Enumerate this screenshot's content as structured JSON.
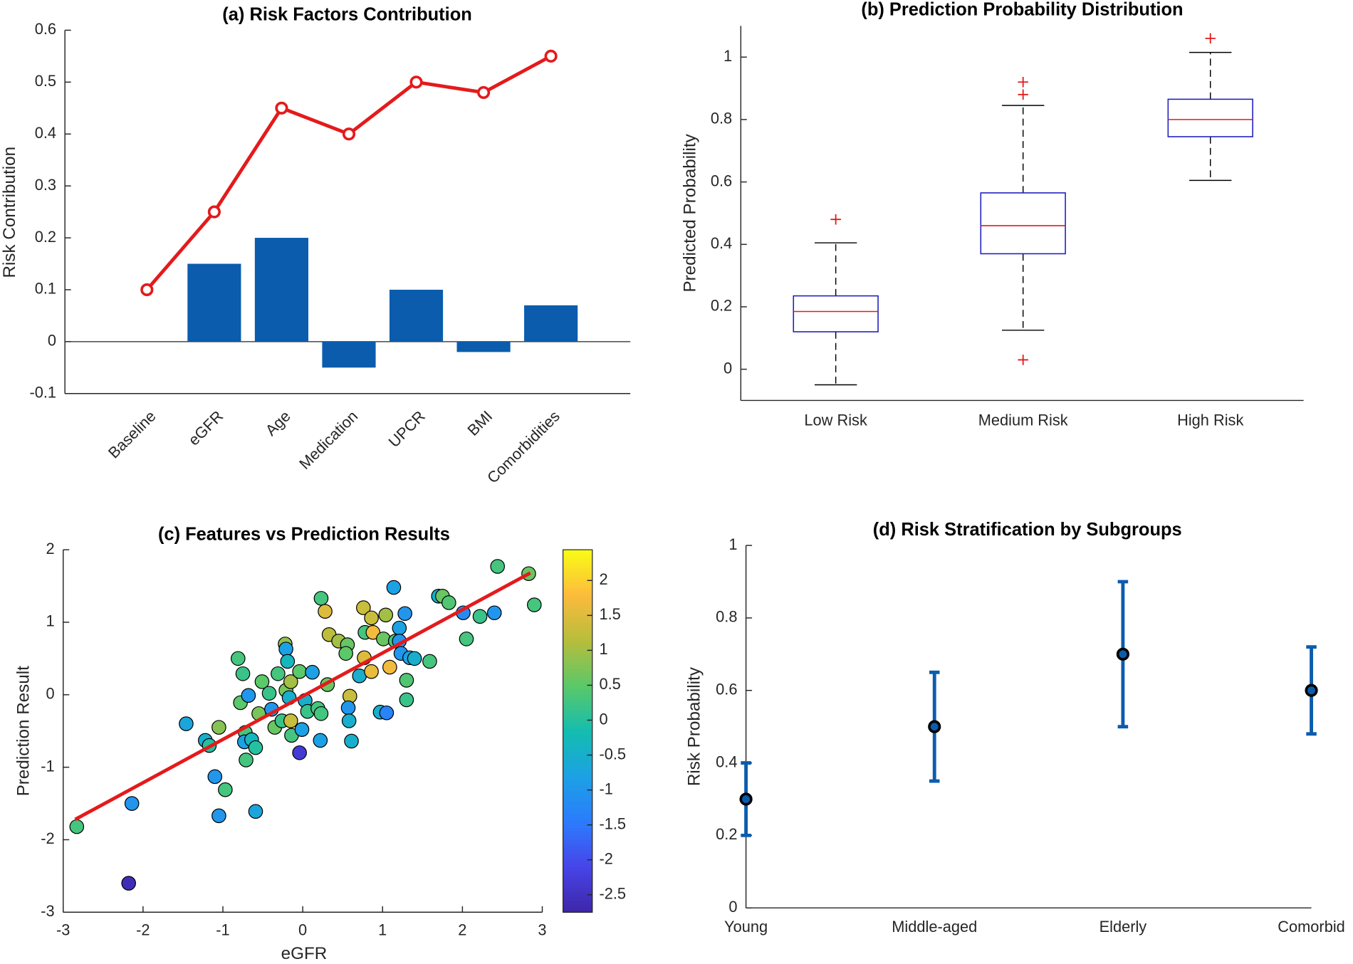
{
  "chart_data": [
    {
      "type": "combo",
      "title": "(a) Risk Factors Contribution",
      "ylabel": "Risk Contribution",
      "categories": [
        "Baseline",
        "eGFR",
        "Age",
        "Medication",
        "UPCR",
        "BMI",
        "Comorbidities"
      ],
      "series": [
        {
          "type": "bar",
          "color": "#0b5cad",
          "values": [
            0,
            0.15,
            0.2,
            -0.05,
            0.1,
            -0.02,
            0.07
          ]
        },
        {
          "type": "line",
          "color": "#e41a1c",
          "values": [
            0.1,
            0.25,
            0.45,
            0.4,
            0.5,
            0.48,
            0.55
          ]
        }
      ],
      "ylim": [
        -0.1,
        0.6
      ],
      "yticks": [
        -0.1,
        0,
        0.1,
        0.2,
        0.3,
        0.4,
        0.5,
        0.6
      ]
    },
    {
      "type": "box",
      "title": "(b) Prediction Probability Distribution",
      "ylabel": "Predicted Probability",
      "categories": [
        "Low Risk",
        "Medium Risk",
        "High Risk"
      ],
      "boxes": [
        {
          "whislo": -0.05,
          "q1": 0.12,
          "median": 0.185,
          "q3": 0.235,
          "whishi": 0.405,
          "outliers": [
            0.48
          ]
        },
        {
          "whislo": 0.125,
          "q1": 0.37,
          "median": 0.46,
          "q3": 0.565,
          "whishi": 0.845,
          "outliers": [
            0.03,
            0.88,
            0.92
          ]
        },
        {
          "whislo": 0.605,
          "q1": 0.745,
          "median": 0.8,
          "q3": 0.865,
          "whishi": 1.015,
          "outliers": [
            1.06
          ]
        }
      ],
      "box_color": "#1f1fbf",
      "median_color": "#e41a1c",
      "outlier_color": "#e41a1c",
      "ylim": [
        -0.1,
        1.1
      ],
      "yticks": [
        0,
        0.2,
        0.4,
        0.6,
        0.8,
        1
      ]
    },
    {
      "type": "scatter",
      "title": "(c) Features vs Prediction Results",
      "xlabel": "eGFR",
      "ylabel": "Prediction Result",
      "x": [
        -2.83,
        -2.14,
        -2.18,
        -1.46,
        -1.22,
        -1.17,
        -1.05,
        -1.1,
        -0.97,
        -1.05,
        -0.59,
        -0.81,
        -0.75,
        -0.78,
        -0.68,
        -0.72,
        -0.73,
        -0.71,
        -0.64,
        -0.59,
        -0.55,
        -0.51,
        -0.42,
        -0.39,
        -0.31,
        -0.35,
        -0.26,
        -0.22,
        -0.21,
        -0.19,
        -0.21,
        -0.15,
        -0.17,
        -0.15,
        -0.14,
        -0.04,
        -0.01,
        -0.04,
        0.03,
        0.06,
        0.12,
        0.19,
        0.23,
        0.23,
        0.28,
        0.22,
        0.31,
        0.33,
        0.45,
        0.56,
        0.54,
        0.59,
        0.57,
        0.58,
        0.61,
        0.71,
        0.76,
        0.77,
        0.78,
        0.86,
        0.86,
        0.88,
        0.97,
        1.04,
        1.01,
        1.05,
        1.09,
        1.14,
        1.16,
        1.21,
        1.21,
        1.28,
        1.23,
        1.3,
        1.3,
        1.34,
        1.4,
        1.59,
        1.7,
        1.75,
        1.83,
        2.01,
        2.05,
        2.22,
        2.4,
        2.44,
        2.83,
        2.9
      ],
      "y": [
        -1.82,
        -1.5,
        -2.6,
        -0.4,
        -0.63,
        -0.7,
        -0.45,
        -1.13,
        -1.31,
        -1.67,
        -1.61,
        0.5,
        0.29,
        -0.11,
        -0.01,
        -0.52,
        -0.65,
        -0.9,
        -0.62,
        -0.73,
        -0.26,
        0.18,
        0.02,
        -0.2,
        0.29,
        -0.45,
        -0.36,
        0.7,
        0.63,
        0.46,
        0.06,
        0.18,
        -0.04,
        -0.36,
        -0.56,
        0.32,
        -0.48,
        -0.8,
        -0.08,
        -0.23,
        0.31,
        -0.19,
        -0.26,
        1.33,
        1.15,
        -0.63,
        0.14,
        0.83,
        0.74,
        0.69,
        0.57,
        -0.02,
        -0.18,
        -0.36,
        -0.64,
        0.26,
        1.2,
        0.51,
        0.86,
        0.32,
        1.06,
        0.86,
        -0.24,
        1.1,
        0.77,
        -0.25,
        0.38,
        1.48,
        0.74,
        0.92,
        0.74,
        1.12,
        0.57,
        0.2,
        -0.07,
        0.51,
        0.5,
        0.46,
        1.36,
        1.36,
        1.27,
        1.13,
        0.77,
        1.08,
        1.13,
        1.77,
        1.67,
        1.24
      ],
      "c": [
        0.3,
        -1,
        -2.6,
        -0.7,
        -0.5,
        0,
        0.8,
        -1,
        0.3,
        -1,
        -0.7,
        0.3,
        0.2,
        0.5,
        -1,
        0.3,
        -0.8,
        0.3,
        -0.3,
        0,
        0.7,
        0.5,
        0.2,
        -1,
        0.3,
        0.6,
        0.2,
        0.9,
        -0.8,
        -0.3,
        0.7,
        1,
        -0.5,
        1.3,
        0.3,
        0.5,
        -0.8,
        -2.3,
        -0.5,
        0.2,
        -0.8,
        0.3,
        0.3,
        0.3,
        1.5,
        -0.8,
        0.6,
        1.2,
        1,
        0.6,
        0.5,
        1.3,
        -1,
        -0.5,
        -0.5,
        -0.5,
        1.3,
        1.5,
        0.3,
        1.6,
        1.3,
        1.7,
        -0.5,
        1,
        0.6,
        -1.3,
        1.7,
        -0.8,
        0.3,
        -0.8,
        -1,
        -1,
        -1,
        0.4,
        0.2,
        -0.8,
        -0.5,
        0.3,
        -0.5,
        0.6,
        0.4,
        -1.2,
        0.3,
        0.2,
        -1,
        0.3,
        0.6,
        0.3
      ],
      "colormap": [
        "#3e26a8",
        "#4744e8",
        "#2c7bfd",
        "#1ca1e4",
        "#14bdb0",
        "#5ac869",
        "#b7bd3c",
        "#fcbb3d",
        "#f9fb15"
      ],
      "clim": [
        -2.75,
        2.44
      ],
      "cticks": [
        -2.5,
        -2,
        -1.5,
        -1,
        -0.5,
        0,
        0.5,
        1,
        1.5,
        2
      ],
      "fit_line": {
        "x": [
          -2.85,
          2.85
        ],
        "y": [
          -1.72,
          1.68
        ],
        "color": "#e41a1c"
      },
      "xlim": [
        -3,
        3
      ],
      "xticks": [
        -3,
        -2,
        -1,
        0,
        1,
        2,
        3
      ],
      "ylim": [
        -3,
        2
      ],
      "yticks": [
        -3,
        -2,
        -1,
        0,
        1,
        2
      ]
    },
    {
      "type": "errorbar",
      "title": "(d) Risk Stratification by Subgroups",
      "ylabel": "Risk Probability",
      "categories": [
        "Young",
        "Middle-aged",
        "Elderly",
        "Comorbid"
      ],
      "values": [
        0.3,
        0.5,
        0.7,
        0.6
      ],
      "errors": [
        0.1,
        0.15,
        0.2,
        0.12
      ],
      "color": "#0b5cad",
      "ylim": [
        0,
        1
      ],
      "yticks": [
        0,
        0.2,
        0.4,
        0.6,
        0.8,
        1
      ]
    }
  ]
}
